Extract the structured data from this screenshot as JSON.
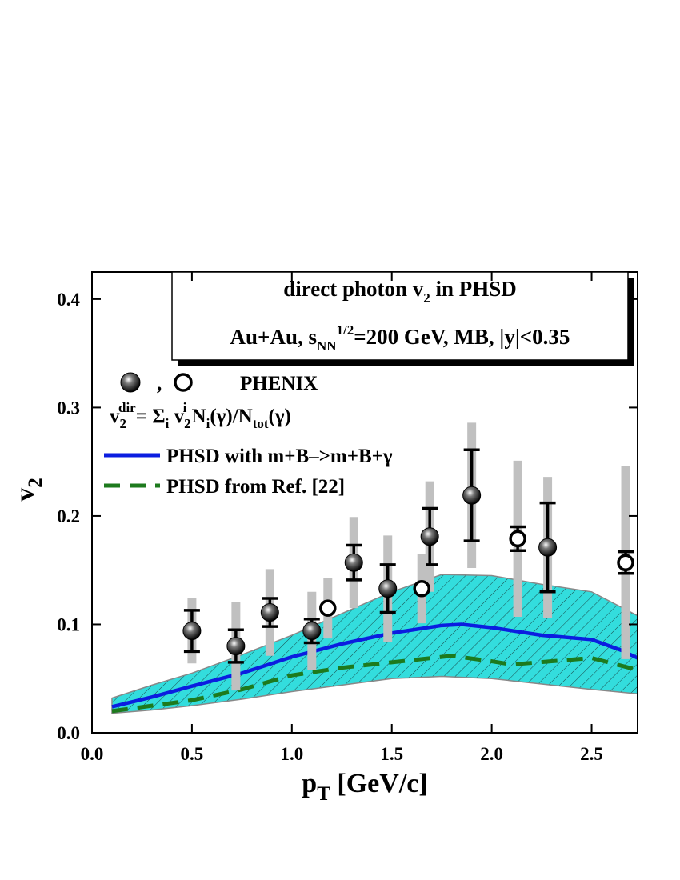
{
  "chart_data": {
    "type": "scatter",
    "title": [
      "direct photon v",
      "2",
      " in PHSD"
    ],
    "subtitle": [
      "Au+Au, s",
      "NN",
      "1/2",
      "=200 GeV, MB, |y|<0.35"
    ],
    "x_label": [
      "p",
      "T",
      " [GeV/c]"
    ],
    "y_label": [
      "v",
      "2"
    ],
    "legend_separator": ",",
    "annotation": [
      "v",
      "2",
      "dir",
      "= Σ",
      "i",
      " v",
      "2",
      "i",
      " N",
      "i",
      "(γ)/N",
      "tot",
      "(γ)"
    ],
    "xlim": [
      0,
      2.73
    ],
    "ylim": [
      0,
      0.425
    ],
    "xticks": [
      {
        "value": 0,
        "label": "0.0"
      },
      0.5,
      {
        "value": 1,
        "label": "1.0"
      },
      1.5,
      {
        "value": 2,
        "label": "2.0"
      },
      2.5
    ],
    "yticks": [
      {
        "value": 0,
        "label": "0.0"
      },
      0.1,
      0.2,
      0.3,
      0.4
    ],
    "series": [
      {
        "kind": "band",
        "color": "#33dddd",
        "x": [
          0.1,
          0.3,
          0.5,
          0.75,
          1.0,
          1.25,
          1.5,
          1.75,
          2.0,
          2.25,
          2.5,
          2.73
        ],
        "upper": [
          0.032,
          0.044,
          0.055,
          0.072,
          0.09,
          0.11,
          0.13,
          0.146,
          0.145,
          0.137,
          0.13,
          0.108
        ],
        "lower": [
          0.018,
          0.021,
          0.025,
          0.031,
          0.038,
          0.044,
          0.05,
          0.052,
          0.05,
          0.045,
          0.04,
          0.036
        ]
      },
      {
        "kind": "line",
        "name": "PHSD with m+B–>m+B+γ",
        "color": "#0b1de0",
        "dashed": false,
        "x": [
          0.1,
          0.3,
          0.5,
          0.75,
          1.0,
          1.25,
          1.5,
          1.75,
          1.85,
          2.0,
          2.25,
          2.5,
          2.65,
          2.73
        ],
        "values": [
          0.024,
          0.033,
          0.043,
          0.055,
          0.07,
          0.082,
          0.092,
          0.099,
          0.1,
          0.097,
          0.09,
          0.086,
          0.076,
          0.069
        ]
      },
      {
        "kind": "line",
        "name": "PHSD from Ref. [22]",
        "color": "#1d7a1d",
        "dashed": true,
        "x": [
          0.1,
          0.3,
          0.5,
          0.75,
          1.0,
          1.25,
          1.5,
          1.8,
          2.0,
          2.1,
          2.3,
          2.5,
          2.73
        ],
        "values": [
          0.02,
          0.025,
          0.03,
          0.04,
          0.053,
          0.06,
          0.065,
          0.071,
          0.066,
          0.063,
          0.066,
          0.069,
          0.058
        ]
      },
      {
        "kind": "points",
        "name": "PHENIX",
        "marker": "filled",
        "color": "#000000",
        "sys_color": "#c0c0c0",
        "x": [
          0.5,
          0.72,
          0.89,
          1.1,
          1.31,
          1.48,
          1.69,
          1.9,
          2.28
        ],
        "values": [
          0.094,
          0.08,
          0.111,
          0.094,
          0.157,
          0.133,
          0.181,
          0.219,
          0.171
        ],
        "errors": [
          0.019,
          0.015,
          0.013,
          0.011,
          0.016,
          0.022,
          0.026,
          0.042,
          0.041
        ],
        "sys_errors": [
          0.03,
          0.041,
          0.04,
          0.036,
          0.042,
          0.049,
          0.051,
          0.067,
          0.065
        ]
      },
      {
        "kind": "points",
        "name": "PHENIX",
        "marker": "open",
        "color": "#000000",
        "sys_color": "#c0c0c0",
        "x": [
          1.18,
          1.65,
          2.13,
          2.67
        ],
        "values": [
          0.115,
          0.133,
          0.179,
          0.157
        ],
        "errors": [
          0,
          0,
          0.011,
          0.01
        ],
        "sys_errors": [
          0.028,
          0.032,
          0.072,
          0.089
        ]
      }
    ]
  }
}
